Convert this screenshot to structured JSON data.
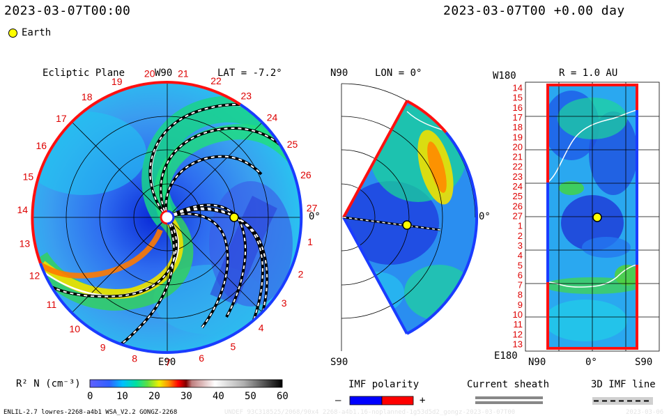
{
  "header": {
    "timestamp_left": "2023-03-07T00:00",
    "timestamp_right": "2023-03-07T00 +0.00 day"
  },
  "legend_earth": "Earth",
  "panel_left": {
    "title": "Ecliptic Plane",
    "w90": "W90",
    "lat": "LAT = -7.2°",
    "e90": "E90",
    "zero_label": "0°",
    "rim_numbers": [
      "20",
      "21",
      "22",
      "23",
      "24",
      "25",
      "26",
      "27",
      "1",
      "2",
      "3",
      "4",
      "5",
      "6",
      "7",
      "8",
      "9",
      "10",
      "11",
      "12",
      "13",
      "14",
      "15",
      "16",
      "17",
      "18",
      "19"
    ]
  },
  "panel_mid": {
    "n90": "N90",
    "lon": "LON = 0°",
    "s90": "S90",
    "zero_label": "0°"
  },
  "panel_right": {
    "title": "R = 1.0 AU",
    "w180": "W180",
    "e180": "E180",
    "x_labels": [
      "N90",
      "0°",
      "S90"
    ],
    "rows": [
      "14",
      "15",
      "16",
      "17",
      "18",
      "19",
      "20",
      "21",
      "22",
      "23",
      "24",
      "25",
      "26",
      "27",
      "1",
      "2",
      "3",
      "4",
      "5",
      "6",
      "7",
      "8",
      "9",
      "10",
      "11",
      "12",
      "13"
    ]
  },
  "colorbar": {
    "label": "R² N (cm⁻³)",
    "ticks": [
      "0",
      "10",
      "20",
      "30",
      "40",
      "50",
      "60"
    ]
  },
  "imf_polarity": {
    "title": "IMF polarity",
    "minus": "–",
    "plus": "+"
  },
  "current_sheath": {
    "title": "Current sheath"
  },
  "imf_line": {
    "title": "3D IMF line"
  },
  "footer": {
    "left": "ENLIL-2.7 lowres-2268-a4b1 WSA_V2.2 GONGZ-2268",
    "right_faint": "UNDEF 93C318525/2068/90x4 2268-a4b1.16-noplanned-1g53d5d2_gongz-2023-03-07T00",
    "date_faint": "2023-03-06"
  },
  "colors": {
    "polarity_negative": "#0000ff",
    "polarity_positive": "#ff0000",
    "earth": "#ffff00"
  }
}
